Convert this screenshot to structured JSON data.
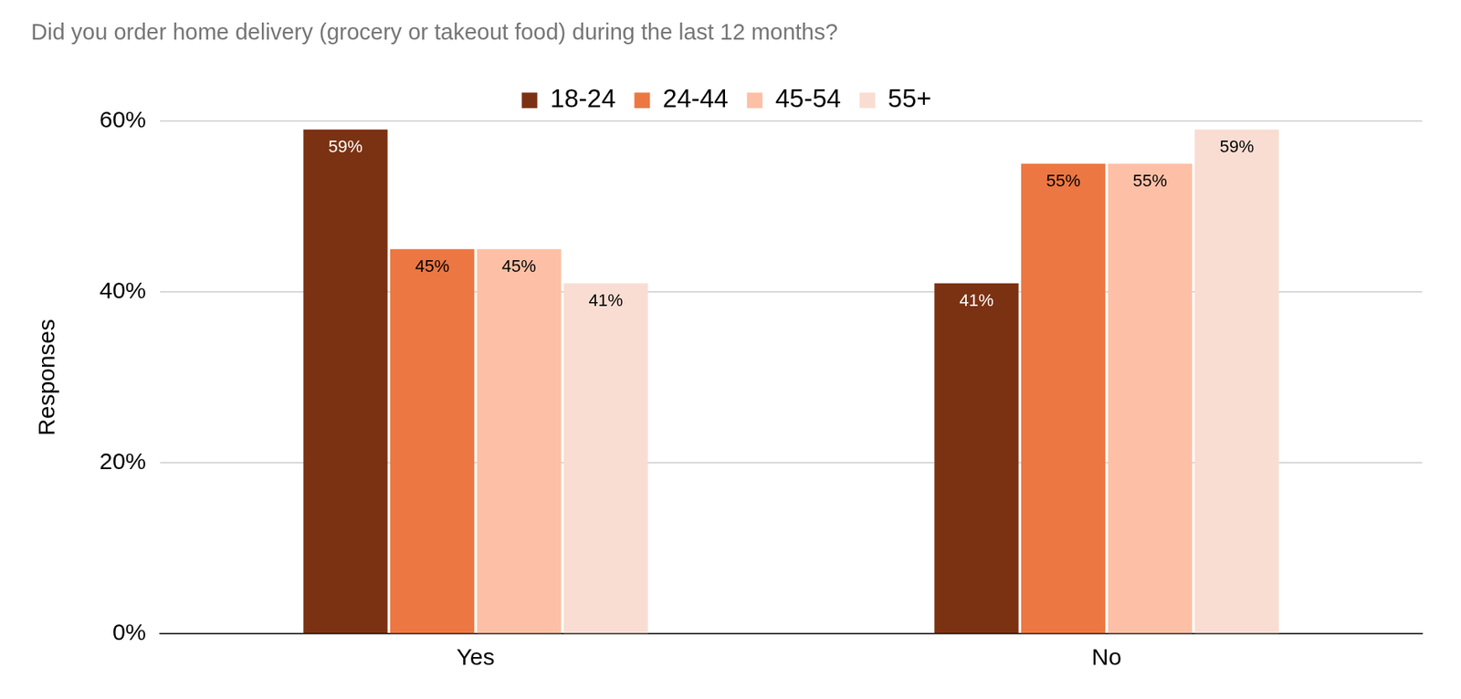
{
  "chart_data": {
    "type": "bar",
    "title": "Did you order home delivery (grocery or takeout food) during the last 12 months?",
    "categories": [
      "Yes",
      "No"
    ],
    "series": [
      {
        "name": "18-24",
        "color": "#7b3213",
        "values": [
          59,
          41
        ],
        "value_labels": [
          "59%",
          "41%"
        ]
      },
      {
        "name": "24-44",
        "color": "#ec7742",
        "values": [
          45,
          55
        ],
        "value_labels": [
          "45%",
          "55%"
        ]
      },
      {
        "name": "45-54",
        "color": "#fdc0a6",
        "values": [
          45,
          55
        ],
        "value_labels": [
          "45%",
          "55%"
        ]
      },
      {
        "name": "55+",
        "color": "#f9ddd2",
        "values": [
          41,
          59
        ],
        "value_labels": [
          "41%",
          "59%"
        ]
      }
    ],
    "y_label": "Responses",
    "ylim": [
      0,
      60
    ],
    "yticks": [
      {
        "value": 0,
        "label": "0%"
      },
      {
        "value": 20,
        "label": "20%"
      },
      {
        "value": 40,
        "label": "40%"
      },
      {
        "value": 60,
        "label": "60%"
      }
    ],
    "grid": true,
    "legend": "top",
    "data_labels": true
  }
}
